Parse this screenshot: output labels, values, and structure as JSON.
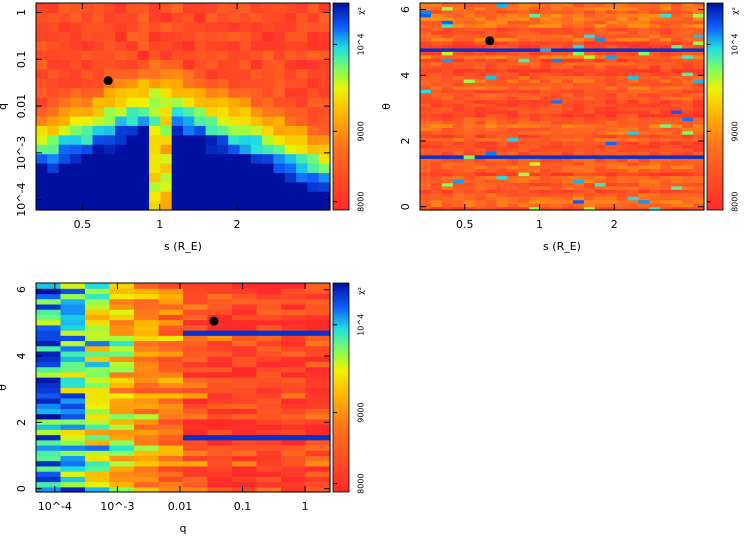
{
  "chart_data": [
    {
      "type": "heatmap",
      "id": "s-q",
      "xlabel": "s (R_E)",
      "ylabel": "q",
      "x_scale": "log",
      "y_scale": "log",
      "xlim": [
        0.33,
        4.6
      ],
      "ylim": [
        6e-05,
        1.6
      ],
      "xticks": [
        {
          "value": 0.5,
          "label": "0.5"
        },
        {
          "value": 1,
          "label": "1"
        },
        {
          "value": 2,
          "label": "2"
        }
      ],
      "yticks": [
        {
          "value": 1,
          "label": "1"
        },
        {
          "value": 0.1,
          "label": "0.1"
        },
        {
          "value": 0.01,
          "label": "0.01"
        },
        {
          "value": 0.001,
          "label": "10^-3"
        },
        {
          "value": 0.0001,
          "label": "10^-4"
        }
      ],
      "best_fit": {
        "x": 0.63,
        "y": 0.035
      },
      "colorbar": {
        "title": "χ²",
        "ticks": [
          "8000",
          "9000",
          "10^4"
        ]
      }
    },
    {
      "type": "heatmap",
      "id": "s-theta",
      "xlabel": "s (R_E)",
      "ylabel": "θ",
      "x_scale": "log",
      "y_scale": "linear",
      "xlim": [
        0.33,
        4.6
      ],
      "ylim": [
        -0.1,
        6.2
      ],
      "xticks": [
        {
          "value": 0.5,
          "label": "0.5"
        },
        {
          "value": 1,
          "label": "1"
        },
        {
          "value": 2,
          "label": "2"
        }
      ],
      "yticks": [
        {
          "value": 0,
          "label": "0"
        },
        {
          "value": 2,
          "label": "2"
        },
        {
          "value": 4,
          "label": "4"
        },
        {
          "value": 6,
          "label": "6"
        }
      ],
      "best_fit": {
        "x": 0.63,
        "y": 5.05
      },
      "colorbar": {
        "title": "χ²",
        "ticks": [
          "8000",
          "9000",
          "10^4"
        ]
      }
    },
    {
      "type": "heatmap",
      "id": "q-theta",
      "xlabel": "q",
      "ylabel": "θ",
      "x_scale": "log",
      "y_scale": "linear",
      "xlim": [
        5e-05,
        2.5
      ],
      "ylim": [
        -0.1,
        6.2
      ],
      "xticks": [
        {
          "value": 0.0001,
          "label": "10^-4"
        },
        {
          "value": 0.001,
          "label": "10^-3"
        },
        {
          "value": 0.01,
          "label": "0.01"
        },
        {
          "value": 0.1,
          "label": "0.1"
        },
        {
          "value": 1,
          "label": "1"
        }
      ],
      "yticks": [
        {
          "value": 0,
          "label": "0"
        },
        {
          "value": 2,
          "label": "2"
        },
        {
          "value": 4,
          "label": "4"
        },
        {
          "value": 6,
          "label": "6"
        }
      ],
      "best_fit": {
        "x": 0.035,
        "y": 5.05
      },
      "colorbar": {
        "title": "χ²",
        "ticks": [
          "8000",
          "9000",
          "10^4"
        ]
      }
    }
  ]
}
